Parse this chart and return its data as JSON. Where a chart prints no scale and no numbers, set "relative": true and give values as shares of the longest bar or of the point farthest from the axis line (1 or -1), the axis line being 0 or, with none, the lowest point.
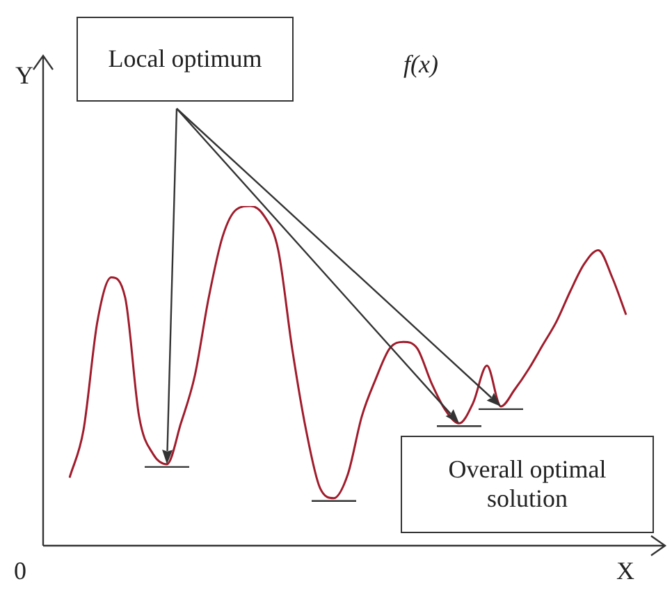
{
  "chart_data": {
    "type": "line",
    "relative": true,
    "xlabel": "X",
    "ylabel": "Y",
    "marker": "none",
    "annotations": [
      "Local optimum",
      "Overall optimal solution",
      "f(x)",
      "0"
    ],
    "categories": [
      null,
      null,
      null,
      null,
      null,
      null,
      null,
      null,
      null,
      null,
      null,
      null,
      null,
      null,
      null,
      null,
      null,
      null,
      null,
      null,
      null,
      null,
      null,
      null,
      null,
      null,
      null,
      null,
      null,
      null,
      null,
      null,
      null,
      null,
      null,
      null,
      null,
      null,
      null,
      null,
      null
    ],
    "series": [
      {
        "color": "#a01c2c",
        "values": [
          0.2,
          0.34,
          0.66,
          0.79,
          0.73,
          0.38,
          0.27,
          0.24,
          0.36,
          0.5,
          0.73,
          0.91,
          0.99,
          1.0,
          0.97,
          0.87,
          0.58,
          0.34,
          0.17,
          0.14,
          0.21,
          0.38,
          0.49,
          0.58,
          0.6,
          0.58,
          0.48,
          0.4,
          0.36,
          0.42,
          0.53,
          0.41,
          0.46,
          0.52,
          0.59,
          0.66,
          0.75,
          0.83,
          0.87,
          0.79,
          0.68
        ]
      }
    ]
  }
}
